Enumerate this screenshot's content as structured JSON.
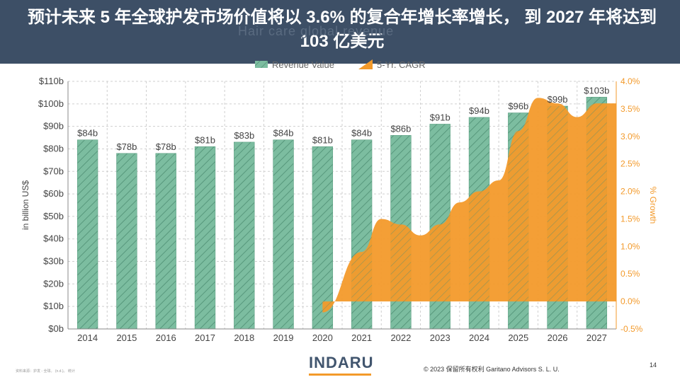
{
  "slide": {
    "title": "预计未来 5 年全球护发市场价值将以 3.6% 的复合年增长率增长， 到 2027 年将达到 103 亿美元",
    "ghost_title": "Hair care global revenue",
    "logo": "INDARU",
    "copyright": "© 2023 保留所有权利 Garitano Advisors S. L. U.",
    "page_number": "14",
    "source": "资料来源：护发 - 全球。 (n.d.)。 统计",
    "colors": {
      "banner": "#3d4f66",
      "bar": "#7cbda0",
      "area": "#f39a2b",
      "logo_accent": "#f39a2b"
    }
  },
  "chart_data": {
    "type": "bar",
    "categories": [
      "2014",
      "2015",
      "2016",
      "2017",
      "2018",
      "2019",
      "2020",
      "2021",
      "2022",
      "2023",
      "2024",
      "2025",
      "2026",
      "2027"
    ],
    "legend_position": "top",
    "grid": true,
    "ylabel": "in billion US$",
    "y2label": "% Growth",
    "ylim": [
      0,
      110
    ],
    "y2lim": [
      -0.5,
      4.0
    ],
    "y_ticks": [
      "$0b",
      "$10b",
      "$20b",
      "$30b",
      "$40b",
      "$50b",
      "$60b",
      "$70b",
      "$80b",
      "$90b",
      "$100b",
      "$110b"
    ],
    "y_tick_values": [
      0,
      10,
      20,
      30,
      40,
      50,
      60,
      70,
      80,
      90,
      100,
      110
    ],
    "y2_ticks": [
      "-0.5%",
      "0.0%",
      "0.5%",
      "1.0%",
      "1.5%",
      "2.0%",
      "2.5%",
      "3.0%",
      "3.5%",
      "4.0%"
    ],
    "y2_tick_values": [
      -0.5,
      0,
      0.5,
      1.0,
      1.5,
      2.0,
      2.5,
      3.0,
      3.5,
      4.0
    ],
    "series": [
      {
        "name": "Revenue Value",
        "type": "bar",
        "values": [
          84,
          78,
          78,
          81,
          83,
          84,
          81,
          84,
          86,
          91,
          94,
          96,
          99,
          103
        ],
        "labels": [
          "$84b",
          "$78b",
          "$78b",
          "$81b",
          "$83b",
          "$84b",
          "$81b",
          "$84b",
          "$86b",
          "$91b",
          "$94b",
          "$96b",
          "$99b",
          "$103b"
        ]
      },
      {
        "name": "5-Yr. CAGR",
        "type": "area",
        "x": [
          2020,
          2021,
          2021.5,
          2022,
          2022.5,
          2023,
          2023.5,
          2024,
          2024.5,
          2025,
          2025.5,
          2026,
          2026.5,
          2027
        ],
        "values": [
          -0.2,
          0.9,
          1.5,
          1.4,
          1.2,
          1.4,
          1.8,
          2.0,
          2.2,
          3.1,
          3.7,
          3.6,
          3.35,
          3.6
        ]
      }
    ]
  }
}
